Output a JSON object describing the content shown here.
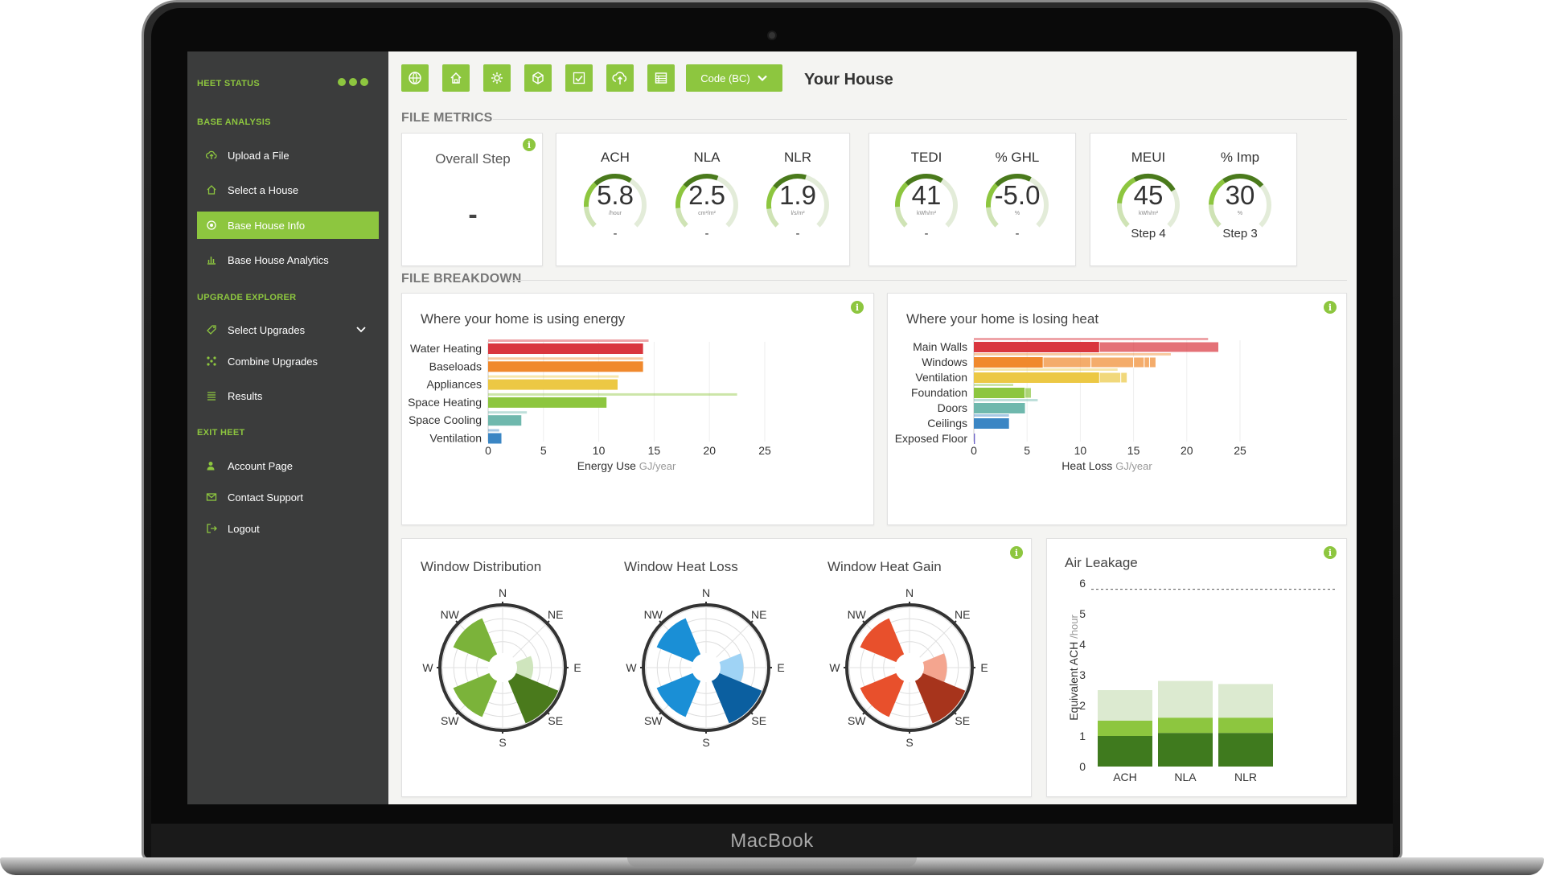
{
  "device": {
    "brand": "MacBook"
  },
  "sidebar": {
    "status_heading": "HEET STATUS",
    "sections": [
      {
        "heading": "BASE ANALYSIS",
        "items": [
          {
            "label": "Upload a File",
            "icon": "cloud-upload-icon"
          },
          {
            "label": "Select a House",
            "icon": "house-icon"
          },
          {
            "label": "Base House Info",
            "icon": "info-gear-icon",
            "active": true
          },
          {
            "label": "Base House Analytics",
            "icon": "bar-chart-icon"
          }
        ]
      },
      {
        "heading": "UPGRADE EXPLORER",
        "items": [
          {
            "label": "Select Upgrades",
            "icon": "tag-icon",
            "expandable": true
          },
          {
            "label": "Combine Upgrades",
            "icon": "combine-icon"
          },
          {
            "label": "Results",
            "icon": "list-icon"
          }
        ]
      },
      {
        "heading": "EXIT HEET",
        "items": [
          {
            "label": "Account Page",
            "icon": "user-icon"
          },
          {
            "label": "Contact Support",
            "icon": "envelope-icon"
          },
          {
            "label": "Logout",
            "icon": "logout-icon"
          }
        ]
      }
    ]
  },
  "toolbar": {
    "buttons": [
      "globe-icon",
      "house-icon",
      "gear-icon",
      "cube-icon",
      "check-icon",
      "cloud-upload-icon",
      "table-icon"
    ],
    "code_label": "Code (BC)",
    "title": "Your House"
  },
  "file_metrics": {
    "heading": "FILE METRICS",
    "overall_step": {
      "label": "Overall Step",
      "value": "-"
    },
    "gauges": [
      {
        "label": "ACH",
        "value": "5.8",
        "unit": "/hour",
        "step": "-",
        "fill": 0.62
      },
      {
        "label": "NLA",
        "value": "2.5",
        "unit": "cm²/m²",
        "step": "-",
        "fill": 0.58
      },
      {
        "label": "NLR",
        "value": "1.9",
        "unit": "l/s/m²",
        "step": "-",
        "fill": 0.56
      },
      {
        "label": "TEDI",
        "value": "41",
        "unit": "kWh/m²",
        "step": "-",
        "fill": 0.62
      },
      {
        "label": "% GHL",
        "value": "-5.0",
        "unit": "%",
        "step": "-",
        "fill": 0.6
      },
      {
        "label": "MEUI",
        "value": "45",
        "unit": "kWh/m²",
        "step": "Step 4",
        "fill": 0.72
      },
      {
        "label": "% Imp",
        "value": "30",
        "unit": "%",
        "step": "Step 3",
        "fill": 0.68
      }
    ]
  },
  "file_breakdown": {
    "heading": "FILE BREAKDOWN"
  },
  "colors": {
    "accent": "#8dc63f",
    "sidebar": "#3b3c3c",
    "dark_green": "#4a7a1c"
  },
  "charts": {
    "energy_title": "Where your home is using energy",
    "heat_title": "Where your home is losing heat",
    "window_dist_title": "Window Distribution",
    "window_loss_title": "Window Heat Loss",
    "window_gain_title": "Window Heat Gain",
    "air_title": "Air Leakage",
    "compass": [
      "N",
      "NE",
      "E",
      "SE",
      "S",
      "SW",
      "W",
      "NW"
    ]
  },
  "chart_data": [
    {
      "type": "bar",
      "orientation": "horizontal",
      "title": "Where your home is using energy",
      "xlabel": "Energy Use",
      "xunit": "GJ/year",
      "xlim": [
        0,
        25
      ],
      "xticks": [
        0,
        5,
        10,
        15,
        20,
        25
      ],
      "categories": [
        "Water Heating",
        "Baseloads",
        "Appliances",
        "Space Heating",
        "Space Cooling",
        "Ventilation"
      ],
      "values": [
        14.0,
        14.0,
        11.7,
        10.7,
        3.0,
        1.2
      ],
      "reference_values": [
        14.5,
        14.0,
        11.8,
        22.5,
        3.5,
        1.0
      ],
      "colors": [
        "#d9363e",
        "#f0892d",
        "#ecc844",
        "#8dc63f",
        "#6fb8ad",
        "#3b86c4"
      ]
    },
    {
      "type": "bar",
      "orientation": "horizontal",
      "stacked": true,
      "title": "Where your home is losing heat",
      "xlabel": "Heat Loss",
      "xunit": "GJ/year",
      "xlim": [
        0,
        25
      ],
      "xticks": [
        0,
        5,
        10,
        15,
        20,
        25
      ],
      "categories": [
        "Main Walls",
        "Windows",
        "Ventilation",
        "Foundation",
        "Doors",
        "Ceilings",
        "Exposed Floor"
      ],
      "segments": [
        [
          11.8,
          11.2
        ],
        [
          6.5,
          4.5,
          4.0,
          1.0,
          0.5,
          0.6
        ],
        [
          11.8,
          2.0,
          0.6
        ],
        [
          4.8,
          0.6
        ],
        [
          4.8
        ],
        [
          3.3
        ],
        [
          0.1
        ]
      ],
      "reference_values": [
        22.0,
        18.5,
        13.5,
        3.7,
        6.0,
        3.3,
        0.0
      ],
      "colors": [
        "#d9363e",
        "#f0892d",
        "#ecc844",
        "#8dc63f",
        "#6fb8ad",
        "#3b86c4",
        "#6b5fc7"
      ]
    },
    {
      "type": "polar",
      "title": "Window Distribution",
      "directions": [
        "N",
        "NE",
        "E",
        "SE",
        "S",
        "SW",
        "W",
        "NW"
      ],
      "values": [
        0,
        0,
        0.55,
        1.0,
        0,
        0.85,
        0,
        0.85
      ],
      "light_values": [
        0,
        0,
        0.35,
        0,
        0,
        0,
        0,
        0
      ],
      "color": "#7bb33a",
      "dark_color": "#4a7a1c",
      "light_color": "#cfe5bd"
    },
    {
      "type": "polar",
      "title": "Window Heat Loss",
      "directions": [
        "N",
        "NE",
        "E",
        "SE",
        "S",
        "SW",
        "W",
        "NW"
      ],
      "values": [
        0,
        0,
        0.5,
        1.0,
        0,
        0.85,
        0,
        0.85
      ],
      "light_values": [
        0,
        0,
        0.5,
        0,
        0,
        0,
        0,
        0
      ],
      "color": "#1a8fd6",
      "dark_color": "#0b5fa0",
      "light_color": "#9fd3f5"
    },
    {
      "type": "polar",
      "title": "Window Heat Gain",
      "directions": [
        "N",
        "NE",
        "E",
        "SE",
        "S",
        "SW",
        "W",
        "NW"
      ],
      "values": [
        0,
        0,
        0.5,
        1.0,
        0,
        0.85,
        0,
        0.85
      ],
      "light_values": [
        0,
        0,
        0.5,
        0,
        0,
        0,
        0,
        0
      ],
      "color": "#e8502c",
      "dark_color": "#a7341c",
      "light_color": "#f4a58f"
    },
    {
      "type": "bar",
      "stacked": true,
      "title": "Air Leakage",
      "ylabel": "Equivalent ACH",
      "yunit": "/hour",
      "ylim": [
        0,
        6
      ],
      "yticks": [
        0,
        1,
        2,
        3,
        4,
        5,
        6
      ],
      "reference_line": 5.8,
      "categories": [
        "ACH",
        "NLA",
        "NLR"
      ],
      "series": [
        {
          "values": [
            1.0,
            1.1,
            1.1
          ],
          "color": "#3f7a1e"
        },
        {
          "values": [
            0.5,
            0.5,
            0.5
          ],
          "color": "#8dc63f"
        },
        {
          "values": [
            1.0,
            1.2,
            1.1
          ],
          "color": "#dcead0"
        }
      ]
    }
  ]
}
